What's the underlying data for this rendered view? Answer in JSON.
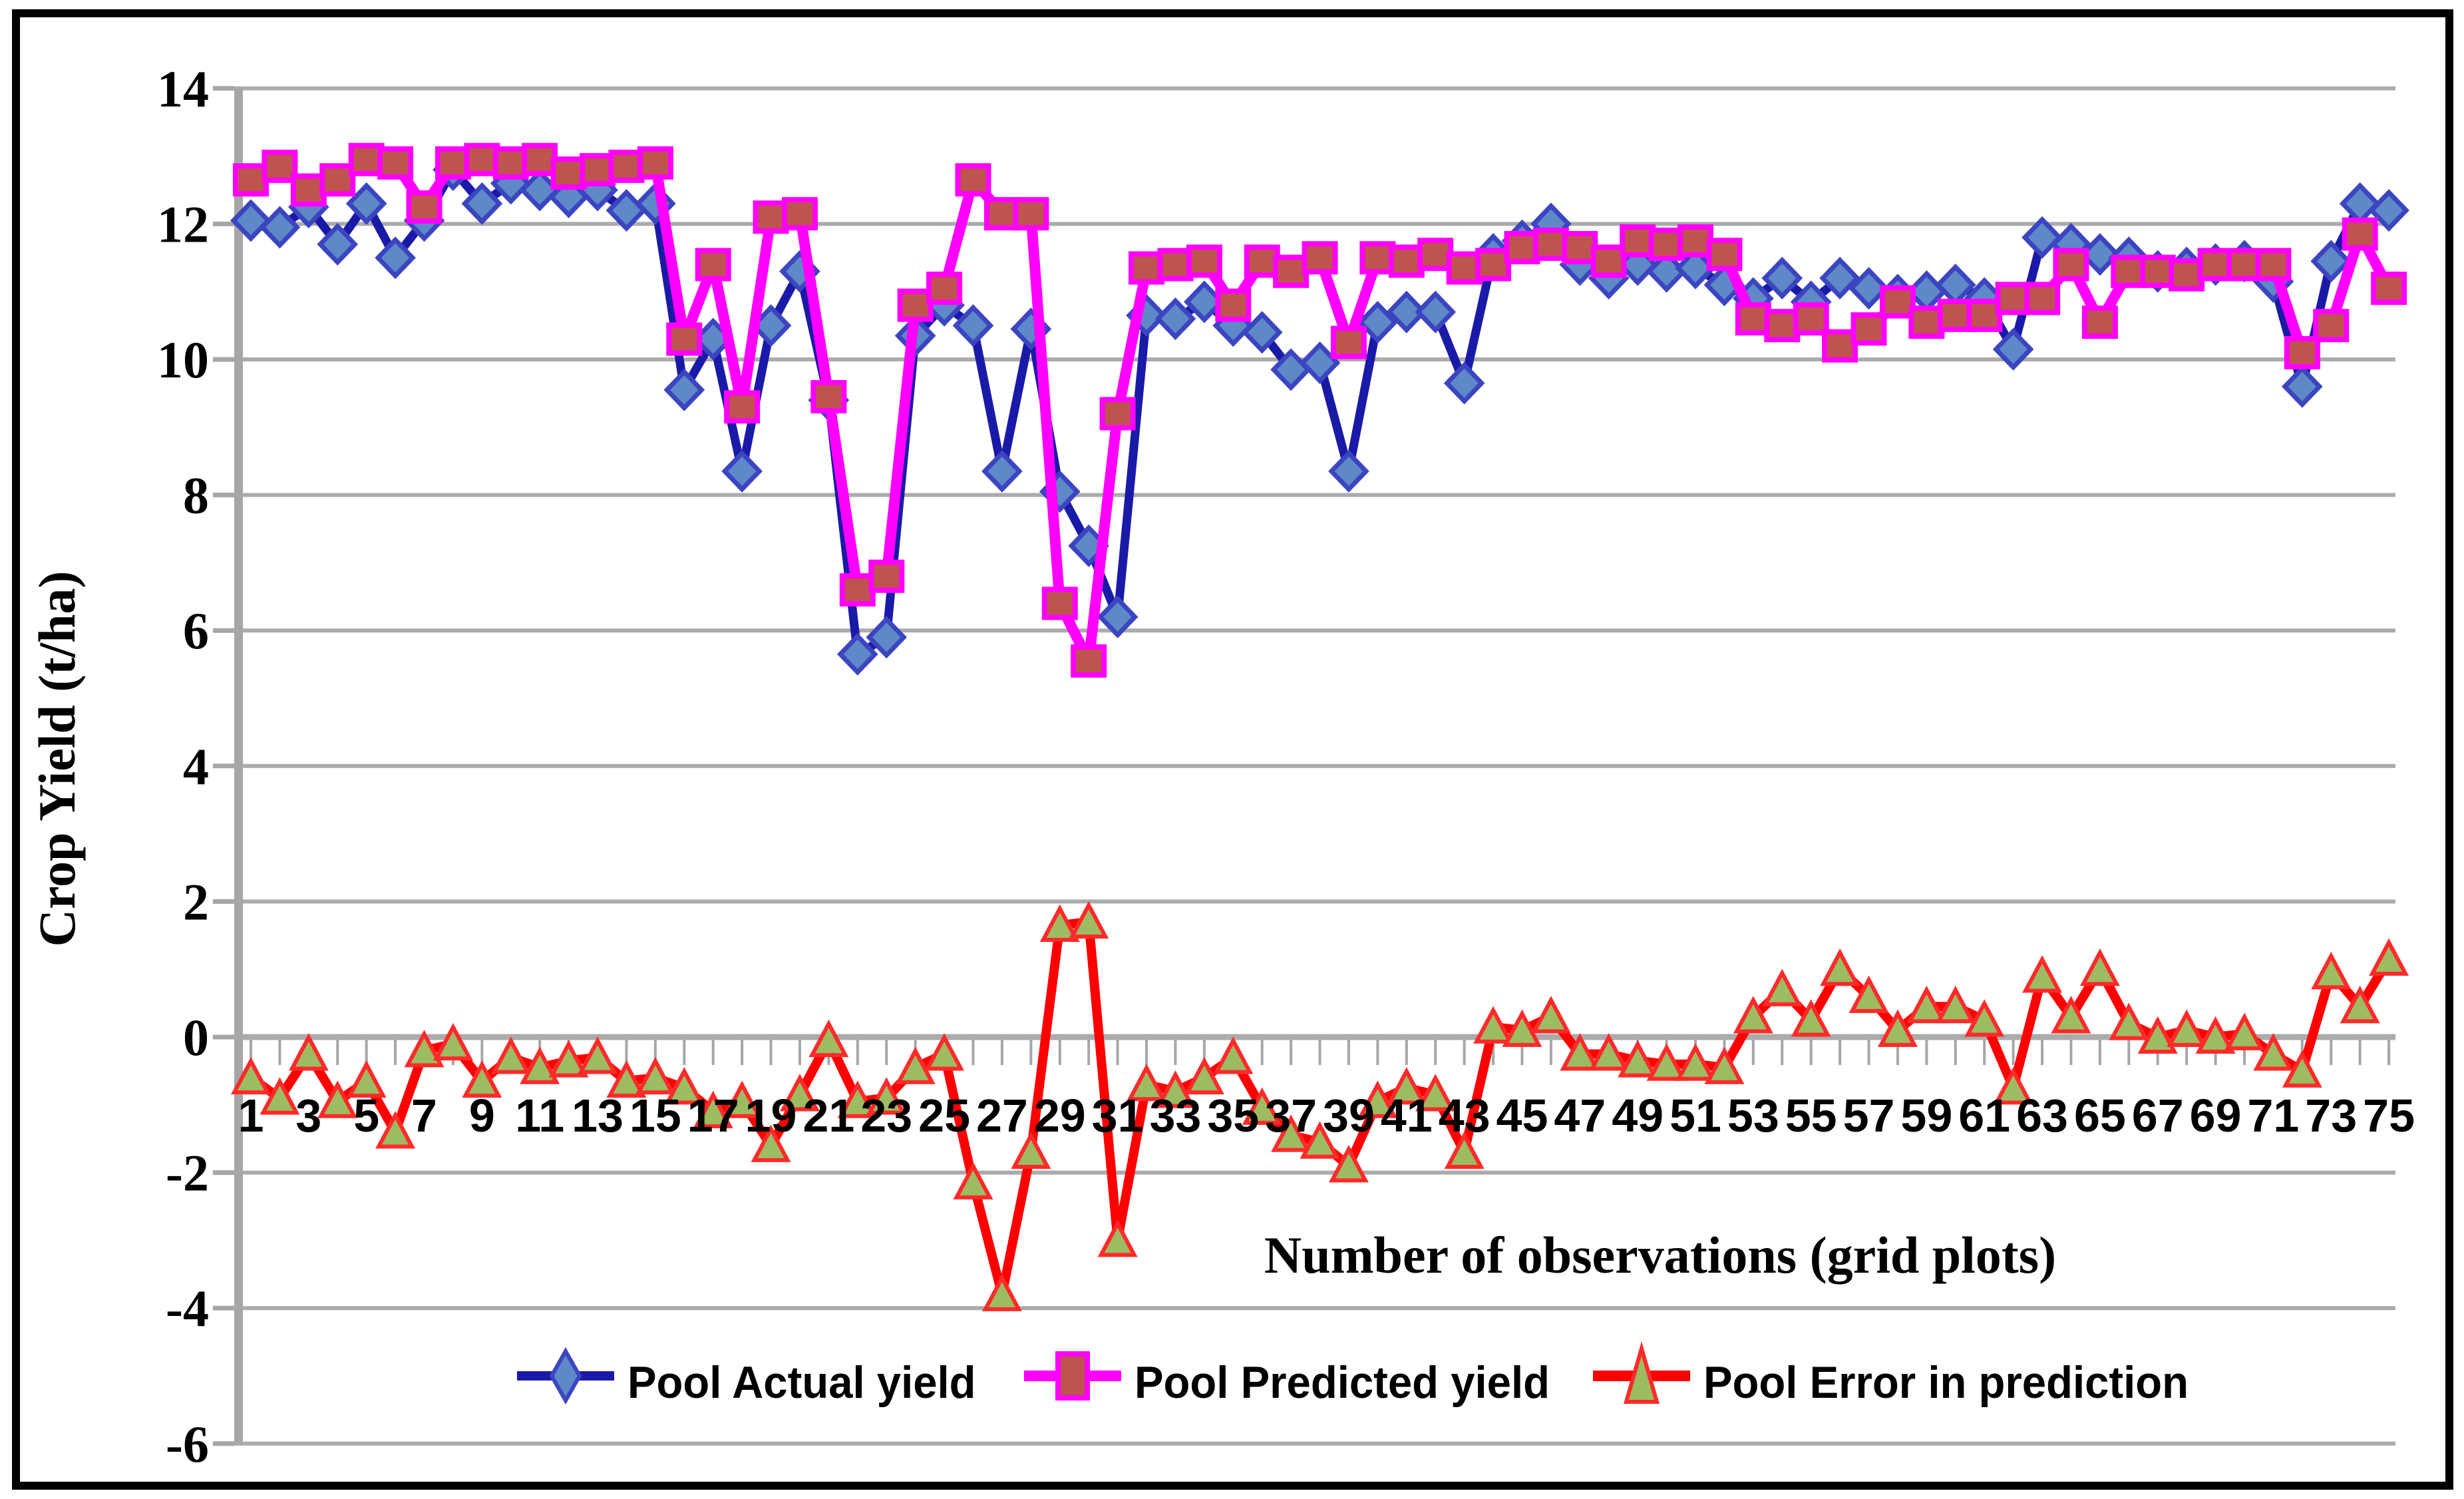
{
  "chart_data": {
    "type": "line",
    "title": "",
    "xlabel": "Number of observations (grid plots)",
    "ylabel": "Crop Yield (t/ha)",
    "n_observations": 75,
    "x": [
      1,
      2,
      3,
      4,
      5,
      6,
      7,
      8,
      9,
      10,
      11,
      12,
      13,
      14,
      15,
      16,
      17,
      18,
      19,
      20,
      21,
      22,
      23,
      24,
      25,
      26,
      27,
      28,
      29,
      30,
      31,
      32,
      33,
      34,
      35,
      36,
      37,
      38,
      39,
      40,
      41,
      42,
      43,
      44,
      45,
      46,
      47,
      48,
      49,
      50,
      51,
      52,
      53,
      54,
      55,
      56,
      57,
      58,
      59,
      60,
      61,
      62,
      63,
      64,
      65,
      66,
      67,
      68,
      69,
      70,
      71,
      72,
      73,
      74,
      75
    ],
    "x_tick_labels": [
      "1",
      "3",
      "5",
      "7",
      "9",
      "11",
      "13",
      "15",
      "17",
      "19",
      "21",
      "23",
      "25",
      "27",
      "29",
      "31",
      "33",
      "35",
      "37",
      "39",
      "41",
      "43",
      "45",
      "47",
      "49",
      "51",
      "53",
      "55",
      "57",
      "59",
      "61",
      "63",
      "65",
      "67",
      "69",
      "71",
      "73",
      "75"
    ],
    "y_ticks": [
      14,
      12,
      10,
      8,
      6,
      4,
      2,
      0,
      -2,
      -4,
      -6
    ],
    "y_tick_labels": [
      "14",
      "12",
      "10",
      "8",
      "6",
      "4",
      "2",
      "0",
      "-2",
      "-4",
      "-6"
    ],
    "ylim": [
      -6,
      14
    ],
    "grid": "horizontal",
    "legend_position": "bottom",
    "series": [
      {
        "name": "Pool Actual yield",
        "marker": "diamond",
        "line_color": "#1A1AA8",
        "marker_fill": "#5E88C8",
        "marker_stroke": "#3C45C0",
        "values": [
          12.05,
          11.95,
          12.25,
          11.7,
          12.3,
          11.5,
          12.05,
          12.8,
          12.3,
          12.6,
          12.5,
          12.4,
          12.5,
          12.2,
          12.3,
          9.55,
          10.3,
          8.35,
          10.5,
          11.3,
          9.4,
          5.65,
          5.9,
          10.35,
          10.8,
          10.5,
          8.35,
          10.45,
          8.05,
          7.25,
          6.2,
          10.65,
          10.6,
          10.85,
          10.5,
          10.4,
          9.85,
          9.95,
          8.35,
          10.55,
          10.7,
          10.7,
          9.65,
          11.55,
          11.75,
          12.0,
          11.4,
          11.2,
          11.4,
          11.3,
          11.35,
          11.1,
          10.9,
          11.2,
          10.85,
          11.2,
          11.05,
          10.95,
          11.0,
          11.1,
          10.9,
          10.15,
          11.8,
          11.7,
          11.55,
          11.5,
          11.3,
          11.35,
          11.4,
          11.45,
          11.15,
          9.6,
          11.45,
          12.3,
          12.2
        ]
      },
      {
        "name": "Pool Predicted yield",
        "marker": "square",
        "line_color": "#FF00FF",
        "marker_fill": "#BE544E",
        "marker_stroke": "#FF00FF",
        "values": [
          12.65,
          12.85,
          12.5,
          12.65,
          12.95,
          12.9,
          12.25,
          12.9,
          12.95,
          12.9,
          12.95,
          12.75,
          12.8,
          12.85,
          12.9,
          10.3,
          11.4,
          9.3,
          12.1,
          12.15,
          9.45,
          6.6,
          6.8,
          10.8,
          11.05,
          12.65,
          12.15,
          12.15,
          6.4,
          5.55,
          9.2,
          11.35,
          11.4,
          11.45,
          10.8,
          11.45,
          11.3,
          11.5,
          10.25,
          11.5,
          11.45,
          11.55,
          11.35,
          11.4,
          11.65,
          11.7,
          11.65,
          11.45,
          11.75,
          11.7,
          11.75,
          11.55,
          10.6,
          10.5,
          10.6,
          10.2,
          10.45,
          10.85,
          10.55,
          10.65,
          10.65,
          10.9,
          10.9,
          11.4,
          10.55,
          11.3,
          11.3,
          11.25,
          11.4,
          11.4,
          11.4,
          10.1,
          10.5,
          11.85,
          11.05
        ]
      },
      {
        "name": "Pool Error in prediction",
        "marker": "triangle",
        "line_color": "#FF0000",
        "marker_fill": "#9DBB61",
        "marker_stroke": "#FF2A2A",
        "values": [
          -0.6,
          -0.9,
          -0.25,
          -0.95,
          -0.65,
          -1.4,
          -0.2,
          -0.1,
          -0.65,
          -0.3,
          -0.45,
          -0.35,
          -0.3,
          -0.65,
          -0.6,
          -0.75,
          -1.1,
          -0.95,
          -1.6,
          -0.85,
          -0.05,
          -0.95,
          -0.9,
          -0.45,
          -0.25,
          -2.15,
          -3.8,
          -1.7,
          1.65,
          1.7,
          -3.0,
          -0.7,
          -0.8,
          -0.6,
          -0.3,
          -1.05,
          -1.45,
          -1.55,
          -1.9,
          -0.95,
          -0.75,
          -0.85,
          -1.7,
          0.15,
          0.1,
          0.3,
          -0.25,
          -0.25,
          -0.35,
          -0.4,
          -0.4,
          -0.45,
          0.3,
          0.7,
          0.25,
          1.0,
          0.6,
          0.1,
          0.45,
          0.45,
          0.25,
          -0.75,
          0.9,
          0.3,
          1.0,
          0.2,
          0.0,
          0.1,
          0.0,
          0.05,
          -0.25,
          -0.5,
          0.95,
          0.45,
          1.15
        ]
      }
    ],
    "colors": {
      "gridline": "#ABABAB",
      "axis": "#A6A6A6",
      "text": "#000000",
      "frame": "#000000",
      "background": "#FFFFFF"
    }
  }
}
